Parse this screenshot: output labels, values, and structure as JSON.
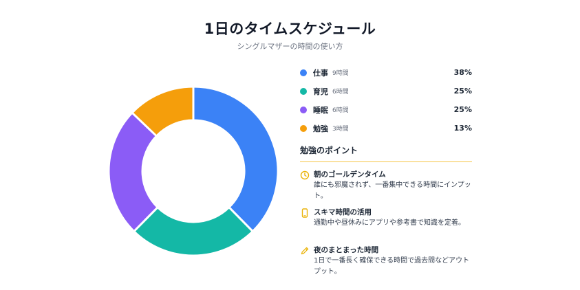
{
  "header": {
    "title": "1日のタイムスケジュール",
    "subtitle": "シングルマザーの時間の使い方"
  },
  "chart_data": {
    "type": "pie",
    "categories": [
      "仕事",
      "育児",
      "睡眠",
      "勉強"
    ],
    "hours": [
      "9時間",
      "6時間",
      "6時間",
      "3時間"
    ],
    "values": [
      38,
      25,
      25,
      13
    ],
    "percent_labels": [
      "38%",
      "25%",
      "25%",
      "13%"
    ],
    "colors": [
      "#3b82f6",
      "#14b8a6",
      "#8b5cf6",
      "#f59e0b"
    ],
    "legend_position": "right"
  },
  "tips": {
    "title": "勉強のポイント",
    "accent": "#eab308",
    "items": [
      {
        "icon": "clock-icon",
        "heading": "朝のゴールデンタイム",
        "text": "誰にも邪魔されず、一番集中できる時間にインプット。"
      },
      {
        "icon": "smartphone-icon",
        "heading": "スキマ時間の活用",
        "text": "通勤中や昼休みにアプリや参考書で知識を定着。"
      },
      {
        "icon": "pencil-icon",
        "heading": "夜のまとまった時間",
        "text": "1日で一番長く確保できる時間で過去問などアウトプット。"
      }
    ]
  }
}
